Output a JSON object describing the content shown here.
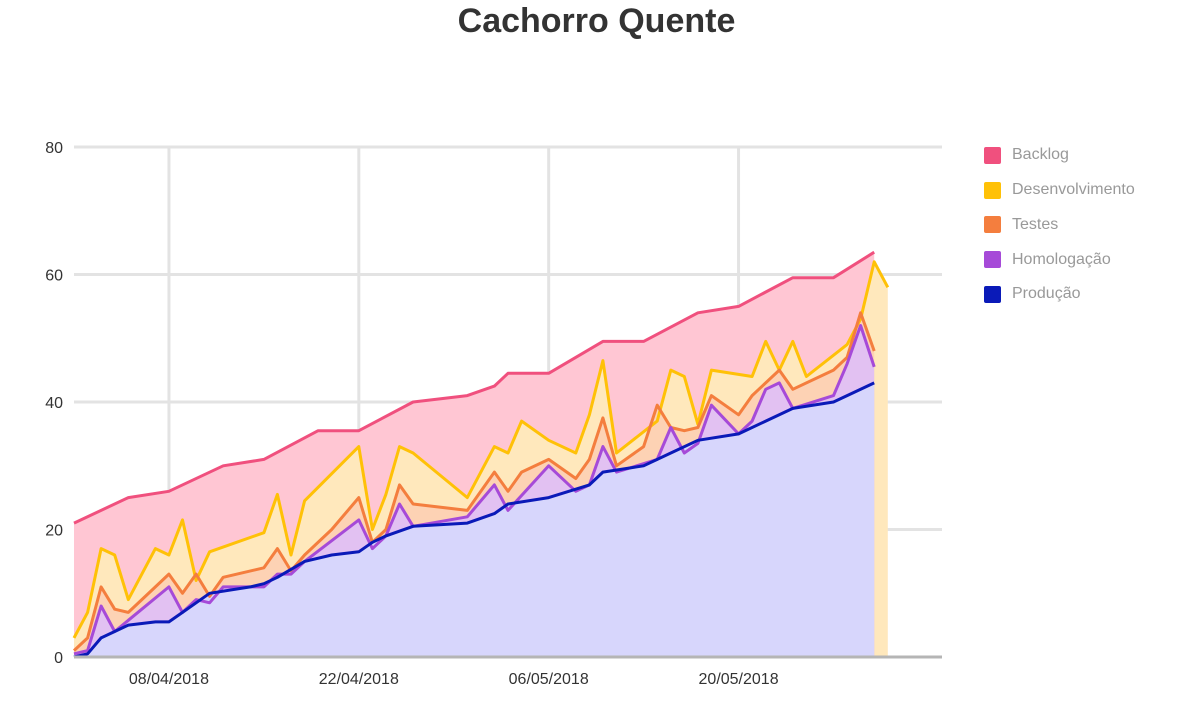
{
  "chart_data": {
    "type": "area",
    "title": "Cachorro Quente",
    "xlabel": "",
    "ylabel": "",
    "ylim": [
      0,
      80
    ],
    "yticks": [
      0,
      20,
      40,
      60,
      80
    ],
    "xlim": [
      "2018-04-01",
      "2018-06-04"
    ],
    "xticks": [
      {
        "date": "2018-04-08",
        "label": "08/04/2018"
      },
      {
        "date": "2018-04-22",
        "label": "22/04/2018"
      },
      {
        "date": "2018-05-06",
        "label": "06/05/2018"
      },
      {
        "date": "2018-05-20",
        "label": "20/05/2018"
      }
    ],
    "grid": true,
    "legend_position": "right",
    "stacked": false,
    "series": [
      {
        "name": "Backlog",
        "color": "#f0507e",
        "fill": "#ffc6d3",
        "points": [
          [
            "2018-04-01",
            21
          ],
          [
            "2018-04-05",
            25
          ],
          [
            "2018-04-08",
            26
          ],
          [
            "2018-04-12",
            30
          ],
          [
            "2018-04-15",
            31
          ],
          [
            "2018-04-19",
            35.5
          ],
          [
            "2018-04-22",
            35.5
          ],
          [
            "2018-04-26",
            40
          ],
          [
            "2018-04-30",
            41
          ],
          [
            "2018-05-02",
            42.5
          ],
          [
            "2018-05-03",
            44.5
          ],
          [
            "2018-05-05",
            44.5
          ],
          [
            "2018-05-06",
            44.5
          ],
          [
            "2018-05-10",
            49.5
          ],
          [
            "2018-05-13",
            49.5
          ],
          [
            "2018-05-17",
            54
          ],
          [
            "2018-05-20",
            55
          ],
          [
            "2018-05-24",
            59.5
          ],
          [
            "2018-05-27",
            59.5
          ],
          [
            "2018-05-30",
            63.5
          ]
        ]
      },
      {
        "name": "Desenvolvimento",
        "color": "#ffc107",
        "fill": "#ffe8bc",
        "points": [
          [
            "2018-04-01",
            3
          ],
          [
            "2018-04-02",
            7
          ],
          [
            "2018-04-03",
            17
          ],
          [
            "2018-04-04",
            16
          ],
          [
            "2018-04-05",
            9
          ],
          [
            "2018-04-07",
            17
          ],
          [
            "2018-04-08",
            16
          ],
          [
            "2018-04-09",
            21.5
          ],
          [
            "2018-04-10",
            12
          ],
          [
            "2018-04-11",
            16.5
          ],
          [
            "2018-04-15",
            19.5
          ],
          [
            "2018-04-16",
            25.5
          ],
          [
            "2018-04-17",
            16
          ],
          [
            "2018-04-18",
            24.5
          ],
          [
            "2018-04-22",
            33
          ],
          [
            "2018-04-23",
            20
          ],
          [
            "2018-04-24",
            25.5
          ],
          [
            "2018-04-25",
            33
          ],
          [
            "2018-04-26",
            32
          ],
          [
            "2018-04-30",
            25
          ],
          [
            "2018-05-02",
            33
          ],
          [
            "2018-05-03",
            32
          ],
          [
            "2018-05-04",
            37
          ],
          [
            "2018-05-06",
            34
          ],
          [
            "2018-05-08",
            32
          ],
          [
            "2018-05-09",
            38
          ],
          [
            "2018-05-10",
            46.5
          ],
          [
            "2018-05-11",
            32
          ],
          [
            "2018-05-14",
            37
          ],
          [
            "2018-05-15",
            45
          ],
          [
            "2018-05-16",
            44
          ],
          [
            "2018-05-17",
            36.5
          ],
          [
            "2018-05-18",
            45
          ],
          [
            "2018-05-21",
            44
          ],
          [
            "2018-05-22",
            49.5
          ],
          [
            "2018-05-23",
            45
          ],
          [
            "2018-05-24",
            49.5
          ],
          [
            "2018-05-25",
            44
          ],
          [
            "2018-05-28",
            49
          ],
          [
            "2018-05-29",
            53
          ],
          [
            "2018-05-30",
            62
          ],
          [
            "2018-05-31",
            58
          ]
        ]
      },
      {
        "name": "Testes",
        "color": "#f47e3e",
        "fill": "#fdd2b4",
        "points": [
          [
            "2018-04-01",
            1
          ],
          [
            "2018-04-02",
            3
          ],
          [
            "2018-04-03",
            11
          ],
          [
            "2018-04-04",
            7.5
          ],
          [
            "2018-04-05",
            7
          ],
          [
            "2018-04-07",
            11
          ],
          [
            "2018-04-08",
            13
          ],
          [
            "2018-04-09",
            10
          ],
          [
            "2018-04-10",
            13
          ],
          [
            "2018-04-11",
            9.5
          ],
          [
            "2018-04-12",
            12.5
          ],
          [
            "2018-04-15",
            14
          ],
          [
            "2018-04-16",
            17
          ],
          [
            "2018-04-17",
            13.5
          ],
          [
            "2018-04-18",
            16
          ],
          [
            "2018-04-20",
            20
          ],
          [
            "2018-04-22",
            25
          ],
          [
            "2018-04-23",
            18
          ],
          [
            "2018-04-24",
            20
          ],
          [
            "2018-04-25",
            27
          ],
          [
            "2018-04-26",
            24
          ],
          [
            "2018-04-30",
            23
          ],
          [
            "2018-05-02",
            29
          ],
          [
            "2018-05-03",
            26
          ],
          [
            "2018-05-04",
            29
          ],
          [
            "2018-05-06",
            31
          ],
          [
            "2018-05-08",
            28
          ],
          [
            "2018-05-09",
            31
          ],
          [
            "2018-05-10",
            37.5
          ],
          [
            "2018-05-11",
            30
          ],
          [
            "2018-05-13",
            33
          ],
          [
            "2018-05-14",
            39.5
          ],
          [
            "2018-05-15",
            36
          ],
          [
            "2018-05-16",
            35.5
          ],
          [
            "2018-05-17",
            36
          ],
          [
            "2018-05-18",
            41
          ],
          [
            "2018-05-20",
            38
          ],
          [
            "2018-05-21",
            41
          ],
          [
            "2018-05-23",
            45
          ],
          [
            "2018-05-24",
            42
          ],
          [
            "2018-05-27",
            45
          ],
          [
            "2018-05-28",
            47
          ],
          [
            "2018-05-29",
            54
          ],
          [
            "2018-05-30",
            48
          ]
        ]
      },
      {
        "name": "Homologação",
        "color": "#a64ad8",
        "fill": "#e2c1f2",
        "points": [
          [
            "2018-04-01",
            0.5
          ],
          [
            "2018-04-02",
            1
          ],
          [
            "2018-04-03",
            8
          ],
          [
            "2018-04-04",
            4
          ],
          [
            "2018-04-08",
            11
          ],
          [
            "2018-04-09",
            7
          ],
          [
            "2018-04-10",
            9
          ],
          [
            "2018-04-11",
            8.5
          ],
          [
            "2018-04-12",
            11
          ],
          [
            "2018-04-15",
            11
          ],
          [
            "2018-04-16",
            13
          ],
          [
            "2018-04-17",
            13
          ],
          [
            "2018-04-18",
            15
          ],
          [
            "2018-04-22",
            21.5
          ],
          [
            "2018-04-23",
            17
          ],
          [
            "2018-04-24",
            19
          ],
          [
            "2018-04-25",
            24
          ],
          [
            "2018-04-26",
            20.5
          ],
          [
            "2018-04-30",
            22
          ],
          [
            "2018-05-02",
            27
          ],
          [
            "2018-05-03",
            23
          ],
          [
            "2018-05-06",
            30
          ],
          [
            "2018-05-08",
            26
          ],
          [
            "2018-05-09",
            27
          ],
          [
            "2018-05-10",
            33
          ],
          [
            "2018-05-11",
            29
          ],
          [
            "2018-05-14",
            31
          ],
          [
            "2018-05-15",
            36
          ],
          [
            "2018-05-16",
            32
          ],
          [
            "2018-05-17",
            33.5
          ],
          [
            "2018-05-18",
            39.5
          ],
          [
            "2018-05-20",
            35
          ],
          [
            "2018-05-21",
            37
          ],
          [
            "2018-05-22",
            42
          ],
          [
            "2018-05-23",
            43
          ],
          [
            "2018-05-24",
            39
          ],
          [
            "2018-05-27",
            41
          ],
          [
            "2018-05-28",
            46
          ],
          [
            "2018-05-29",
            52
          ],
          [
            "2018-05-30",
            45.5
          ]
        ]
      },
      {
        "name": "Produção",
        "color": "#0a1ab8",
        "fill": "#d7d6fc",
        "points": [
          [
            "2018-04-01",
            0
          ],
          [
            "2018-04-02",
            0.5
          ],
          [
            "2018-04-03",
            3
          ],
          [
            "2018-04-04",
            4
          ],
          [
            "2018-04-05",
            5
          ],
          [
            "2018-04-07",
            5.5
          ],
          [
            "2018-04-08",
            5.5
          ],
          [
            "2018-04-09",
            7
          ],
          [
            "2018-04-10",
            8.5
          ],
          [
            "2018-04-11",
            10
          ],
          [
            "2018-04-14",
            11
          ],
          [
            "2018-04-15",
            11.5
          ],
          [
            "2018-04-16",
            12.5
          ],
          [
            "2018-04-18",
            15
          ],
          [
            "2018-04-20",
            16
          ],
          [
            "2018-04-22",
            16.5
          ],
          [
            "2018-04-23",
            18
          ],
          [
            "2018-04-24",
            19
          ],
          [
            "2018-04-26",
            20.5
          ],
          [
            "2018-04-30",
            21
          ],
          [
            "2018-05-02",
            22.5
          ],
          [
            "2018-05-03",
            24
          ],
          [
            "2018-05-06",
            25
          ],
          [
            "2018-05-09",
            27
          ],
          [
            "2018-05-10",
            29
          ],
          [
            "2018-05-13",
            30
          ],
          [
            "2018-05-15",
            32
          ],
          [
            "2018-05-17",
            34
          ],
          [
            "2018-05-20",
            35
          ],
          [
            "2018-05-22",
            37
          ],
          [
            "2018-05-24",
            39
          ],
          [
            "2018-05-27",
            40
          ],
          [
            "2018-05-28",
            41
          ],
          [
            "2018-05-30",
            43
          ]
        ]
      }
    ]
  }
}
